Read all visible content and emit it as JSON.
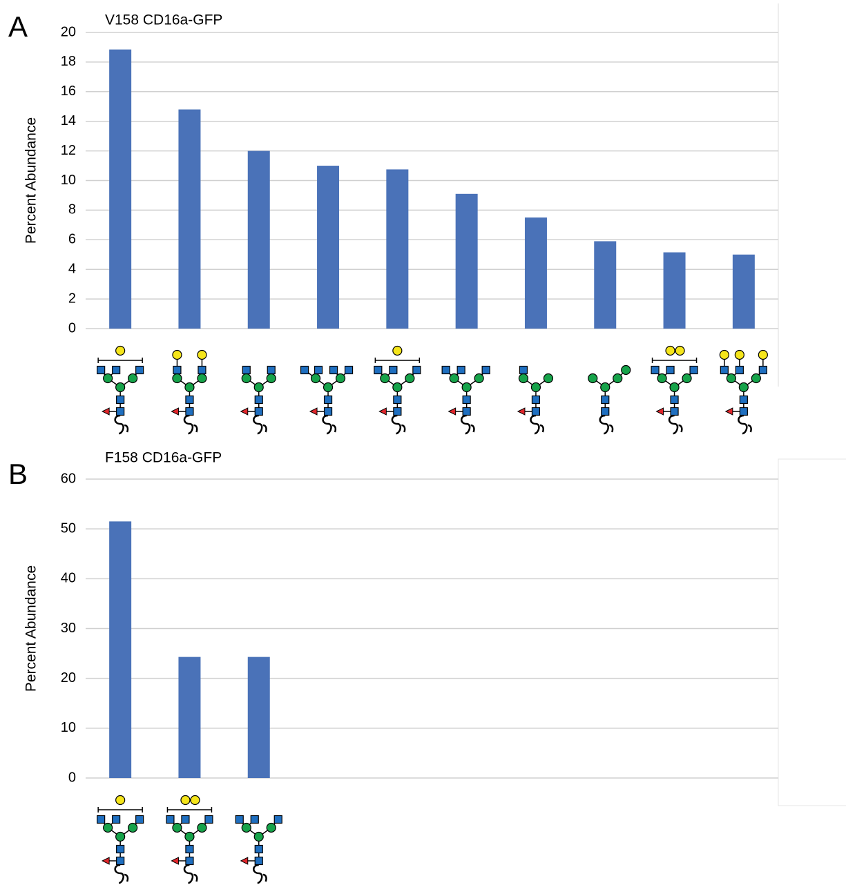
{
  "chart_data": [
    {
      "type": "bar",
      "panel": "A",
      "title": "V158 CD16a-GFP",
      "y_label": "Percent Abundance",
      "categories": [
        null,
        null,
        null,
        null,
        null,
        null,
        null,
        null,
        null,
        null
      ],
      "values": [
        18.85,
        14.8,
        12.0,
        11.0,
        10.75,
        9.1,
        7.5,
        5.9,
        5.15,
        5.0
      ],
      "color": "#4a72b8",
      "ylim": [
        0,
        20
      ],
      "yticks": [
        0,
        2,
        4,
        6,
        8,
        10,
        12,
        14,
        16,
        18,
        20
      ],
      "grid": true
    },
    {
      "type": "bar",
      "panel": "B",
      "title": "F158 CD16a-GFP",
      "y_label": "Percent Abundance",
      "categories": [
        null,
        null,
        null,
        null,
        null,
        null,
        null,
        null,
        null,
        null
      ],
      "values": [
        51.5,
        24.3,
        24.3,
        null,
        null,
        null,
        null,
        null,
        null,
        null
      ],
      "color": "#4a72b8",
      "ylim": [
        0,
        60
      ],
      "yticks": [
        0,
        10,
        20,
        30,
        40,
        50,
        60
      ],
      "grid": true
    }
  ]
}
